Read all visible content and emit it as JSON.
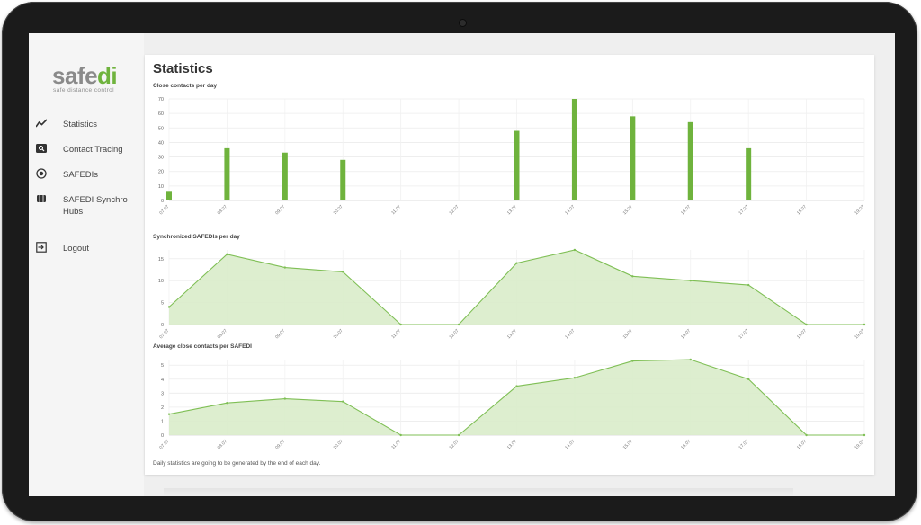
{
  "sidebar": {
    "logo": {
      "word_gray": "safe",
      "word_green": "di",
      "tagline": "safe distance control"
    },
    "items": [
      {
        "label": "Statistics",
        "icon": "trend-line-icon"
      },
      {
        "label": "Contact Tracing",
        "icon": "search-icon"
      },
      {
        "label": "SAFEDIs",
        "icon": "radio-target-icon"
      },
      {
        "label": "SAFEDI Synchro Hubs",
        "icon": "hub-icon"
      }
    ],
    "logout": {
      "label": "Logout",
      "icon": "logout-icon"
    }
  },
  "main": {
    "title": "Statistics",
    "footnote": "Daily statistics are going to be generated by the end of each day."
  },
  "colors": {
    "accent": "#6fb33d",
    "area_fill": "#d9ecca",
    "line": "#7fbf55"
  },
  "chart_data": [
    {
      "type": "bar",
      "title": "Close contacts per day",
      "categories": [
        "07.07",
        "08.07",
        "09.07",
        "10.07",
        "11.07",
        "12.07",
        "13.07",
        "14.07",
        "15.07",
        "16.07",
        "17.07",
        "18.07",
        "19.07"
      ],
      "values": [
        6,
        36,
        33,
        28,
        0,
        0,
        48,
        70,
        58,
        54,
        36,
        0,
        0
      ],
      "ylim": [
        0,
        70
      ],
      "yticks": [
        0,
        10,
        20,
        30,
        40,
        50,
        60,
        70
      ],
      "grid": true
    },
    {
      "type": "area",
      "title": "Synchronized SAFEDIs per day",
      "categories": [
        "07.07",
        "08.07",
        "09.07",
        "10.07",
        "11.07",
        "12.07",
        "13.07",
        "14.07",
        "15.07",
        "16.07",
        "17.07",
        "18.07",
        "19.07"
      ],
      "values": [
        4,
        16,
        13,
        12,
        0,
        0,
        14,
        17,
        11,
        10,
        9,
        0,
        0
      ],
      "ylim": [
        0,
        17
      ],
      "yticks": [
        0,
        5,
        10,
        15
      ],
      "grid": true
    },
    {
      "type": "area",
      "title": "Average close contacts per SAFEDI",
      "categories": [
        "07.07",
        "08.07",
        "09.07",
        "10.07",
        "11.07",
        "12.07",
        "13.07",
        "14.07",
        "15.07",
        "16.07",
        "17.07",
        "18.07",
        "19.07"
      ],
      "values": [
        1.5,
        2.3,
        2.6,
        2.4,
        0,
        0,
        3.5,
        4.1,
        5.3,
        5.4,
        4.0,
        0,
        0
      ],
      "ylim": [
        0,
        5.4
      ],
      "yticks": [
        0,
        1,
        2,
        3,
        4,
        5
      ],
      "grid": true
    }
  ]
}
